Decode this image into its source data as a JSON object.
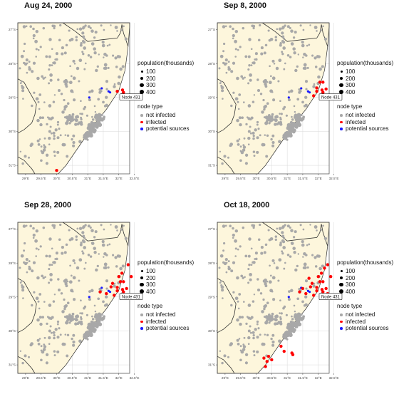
{
  "panels": [
    {
      "title": "Aug 24, 2000",
      "infected": [
        [
          32.12,
          28.78
        ],
        [
          32.15,
          28.85
        ],
        [
          31.95,
          28.82
        ],
        [
          30.0,
          31.15
        ]
      ]
    },
    {
      "title": "Sep 8, 2000",
      "infected": [
        [
          32.12,
          28.78
        ],
        [
          32.15,
          28.85
        ],
        [
          31.95,
          28.82
        ],
        [
          32.05,
          28.55
        ],
        [
          32.25,
          28.75
        ],
        [
          32.15,
          28.55
        ],
        [
          31.85,
          28.95
        ],
        [
          31.95,
          28.72
        ]
      ]
    },
    {
      "title": "Sep 28, 2000",
      "infected": [
        [
          32.12,
          28.78
        ],
        [
          32.15,
          28.85
        ],
        [
          31.95,
          28.82
        ],
        [
          32.05,
          28.55
        ],
        [
          32.25,
          28.75
        ],
        [
          32.15,
          28.55
        ],
        [
          31.85,
          28.95
        ],
        [
          31.95,
          28.72
        ],
        [
          32.1,
          28.3
        ],
        [
          31.75,
          28.7
        ],
        [
          31.6,
          28.9
        ],
        [
          32.3,
          28.05
        ],
        [
          32.4,
          28.4
        ],
        [
          32.0,
          28.4
        ],
        [
          31.8,
          28.6
        ],
        [
          31.4,
          28.85
        ]
      ]
    },
    {
      "title": "Oct 18, 2000",
      "infected": [
        [
          32.12,
          28.78
        ],
        [
          32.15,
          28.85
        ],
        [
          31.95,
          28.82
        ],
        [
          32.05,
          28.55
        ],
        [
          32.25,
          28.75
        ],
        [
          32.15,
          28.55
        ],
        [
          31.85,
          28.95
        ],
        [
          31.95,
          28.72
        ],
        [
          32.1,
          28.3
        ],
        [
          31.75,
          28.7
        ],
        [
          31.6,
          28.9
        ],
        [
          32.3,
          28.05
        ],
        [
          32.4,
          28.4
        ],
        [
          32.0,
          28.4
        ],
        [
          31.8,
          28.6
        ],
        [
          31.4,
          28.85
        ],
        [
          31.5,
          28.75
        ],
        [
          32.2,
          28.15
        ],
        [
          32.3,
          28.9
        ],
        [
          31.7,
          28.45
        ],
        [
          31.15,
          30.65
        ],
        [
          31.18,
          30.7
        ],
        [
          30.8,
          30.45
        ],
        [
          30.5,
          30.85
        ],
        [
          30.4,
          30.75
        ],
        [
          30.25,
          30.8
        ],
        [
          30.35,
          30.9
        ],
        [
          30.9,
          30.6
        ],
        [
          30.3,
          31.05
        ]
      ]
    }
  ],
  "node_label": "Node 431",
  "node_coord": [
    32.12,
    28.85
  ],
  "sources": [
    [
      31.67,
      28.82
    ],
    [
      31.72,
      28.85
    ],
    [
      31.45,
      28.73
    ],
    [
      31.05,
      29.0
    ]
  ],
  "xticks": [
    "29°E",
    "29.5°E",
    "30°E",
    "30.5°E",
    "31°E",
    "31.5°E",
    "32°E",
    "32.5°E"
  ],
  "yticks": [
    "27°S",
    "28°S",
    "29°S",
    "30°S",
    "31°S"
  ],
  "legend": {
    "size_title": "population(thousands)",
    "sizes": [
      "100",
      "200",
      "300",
      "400"
    ],
    "type_title": "node type",
    "types": [
      "not infected",
      "infected",
      "potential sources"
    ]
  },
  "colors": {
    "land": "#fdf6dc",
    "ocean": "#ffffff",
    "node": "#a8a8a8",
    "infected": "#ff0000",
    "source": "#1a1aff",
    "grid": "#d9d9d9"
  }
}
